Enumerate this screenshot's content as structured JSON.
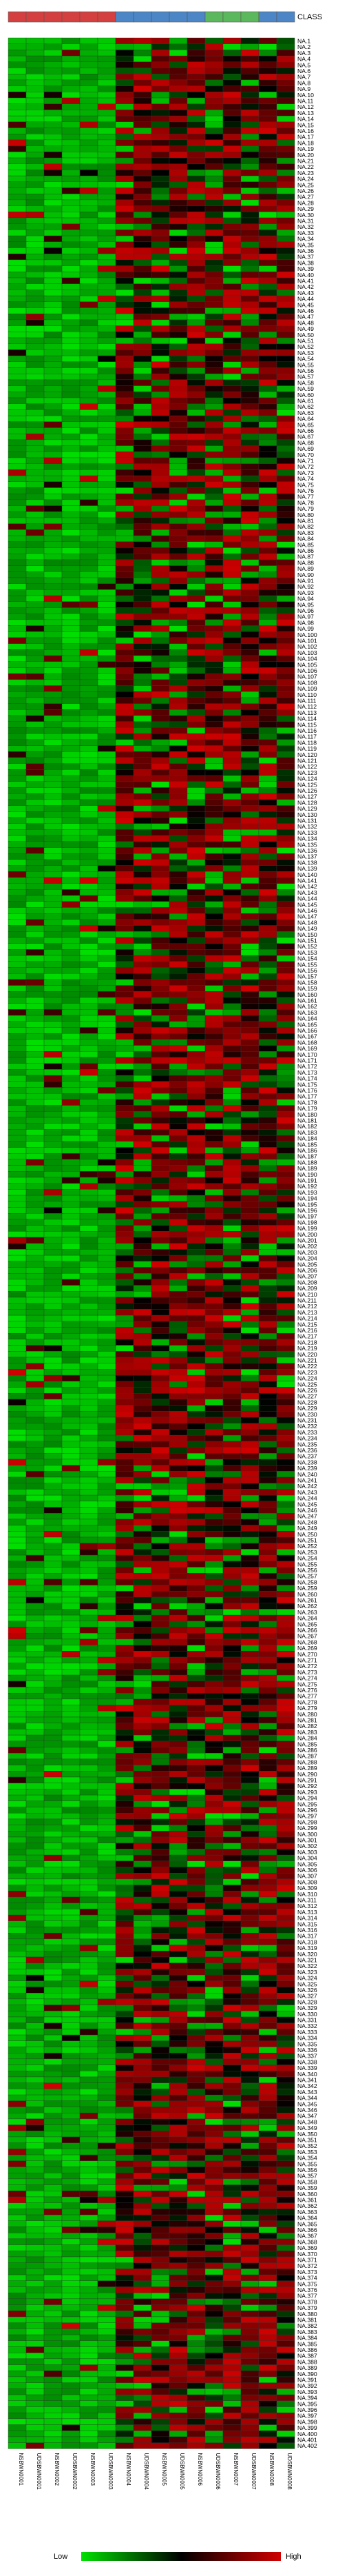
{
  "chart_data": {
    "type": "heatmap",
    "class_label": "CLASS",
    "class_colors": [
      "#d43f3f",
      "#d43f3f",
      "#d43f3f",
      "#d43f3f",
      "#d43f3f",
      "#d43f3f",
      "#4c86c6",
      "#4c86c6",
      "#4c86c6",
      "#4c86c6",
      "#4c86c6",
      "#5cb85c",
      "#5cb85c",
      "#5cb85c",
      "#4c86c6",
      "#4c86c6"
    ],
    "columns": [
      "NSBWN0001",
      "UDSBWN0001",
      "NSBWN0002",
      "UDSBWN0002",
      "NSBWN0003",
      "UDSBWN0003",
      "NSBWN0004",
      "UDSBWN0004",
      "NSBWN0005",
      "UDSBWN0005",
      "NSBWN0006",
      "UDSBWN0006",
      "NSBWN0007",
      "UDSBWN0007",
      "NSBWN0008",
      "UDSBWN0008"
    ],
    "row_prefix": "NA.",
    "row_count": 402,
    "legend": {
      "low_label": "Low",
      "high_label": "High",
      "colors": [
        "#00e000",
        "#000000",
        "#d00000"
      ]
    },
    "value_range": [
      -1,
      1
    ]
  }
}
